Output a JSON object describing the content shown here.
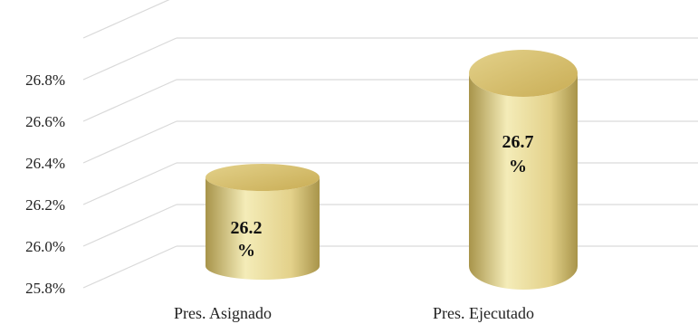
{
  "chart_data": {
    "type": "bar",
    "style": "3d-cylinder",
    "categories": [
      "Pres. Asignado",
      "Pres. Ejecutado"
    ],
    "values": [
      26.2,
      26.7
    ],
    "data_labels": [
      {
        "value": "26.2",
        "unit": "%"
      },
      {
        "value": "26.7",
        "unit": "%"
      }
    ],
    "y_ticks": [
      "25.8%",
      "26.0%",
      "26.2%",
      "26.4%",
      "26.6%",
      "26.8%"
    ],
    "ylim": [
      25.8,
      27.0
    ],
    "grid": true,
    "legend": "none",
    "colors": {
      "bar_light": "#f4ecb8",
      "bar_mid": "#e3d18a",
      "bar_dark": "#a8944a",
      "top_cap": "#c9ad55",
      "grid": "#d9d9d9"
    }
  }
}
